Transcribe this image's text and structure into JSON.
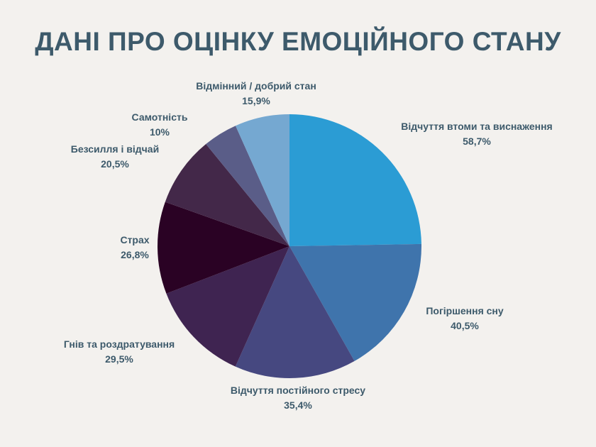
{
  "chart_data": {
    "type": "pie",
    "title": "ДАНІ ПРО ОЦІНКУ ЕМОЦІЙНОГО СТАНУ",
    "unit": "%",
    "slices": [
      {
        "label": "Відчуття втоми та виснаження",
        "value": 58.7,
        "value_label": "58,7%",
        "color": "#2b9cd4"
      },
      {
        "label": "Погіршення сну",
        "value": 40.5,
        "value_label": "40,5%",
        "color": "#3f74ac"
      },
      {
        "label": "Відчуття постійного стресу",
        "value": 35.4,
        "value_label": "35,4%",
        "color": "#464880"
      },
      {
        "label": "Гнів та роздратування",
        "value": 29.5,
        "value_label": "29,5%",
        "color": "#3f2451"
      },
      {
        "label": "Страх",
        "value": 26.8,
        "value_label": "26,8%",
        "color": "#2a0224"
      },
      {
        "label": "Безсилля і відчай",
        "value": 20.5,
        "value_label": "20,5%",
        "color": "#432849"
      },
      {
        "label": "Самотність",
        "value": 10,
        "value_label": "10%",
        "color": "#5a5d88"
      },
      {
        "label": "Відмінний / добрий стан",
        "value": 15.9,
        "value_label": "15,9%",
        "color": "#75a8d1"
      }
    ]
  }
}
